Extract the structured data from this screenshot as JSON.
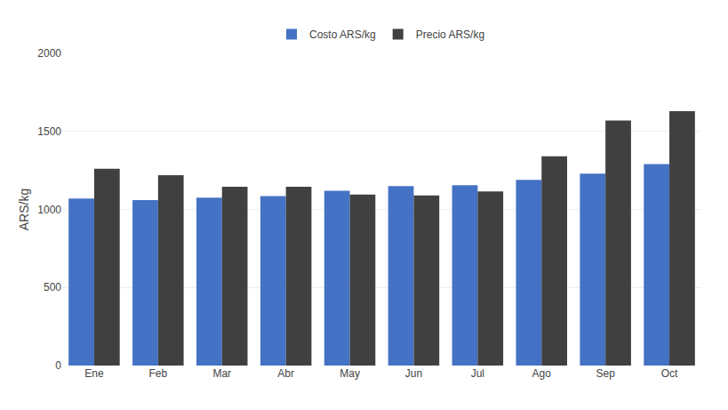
{
  "chart_data": {
    "type": "bar",
    "categories": [
      "Ene",
      "Feb",
      "Mar",
      "Abr",
      "May",
      "Jun",
      "Jul",
      "Ago",
      "Sep",
      "Oct"
    ],
    "series": [
      {
        "name": "Costo ARS/kg",
        "color": "#4472C4",
        "values": [
          1070,
          1060,
          1075,
          1085,
          1120,
          1150,
          1155,
          1190,
          1230,
          1290
        ]
      },
      {
        "name": "Precio ARS/kg",
        "color": "#404040",
        "values": [
          1260,
          1220,
          1145,
          1145,
          1095,
          1090,
          1115,
          1340,
          1570,
          1630
        ]
      }
    ],
    "ylabel": "ARS/kg",
    "ylim": [
      0,
      2000
    ],
    "yticks": [
      0,
      500,
      1000,
      1500,
      2000
    ],
    "grid": true,
    "legend": "top"
  }
}
